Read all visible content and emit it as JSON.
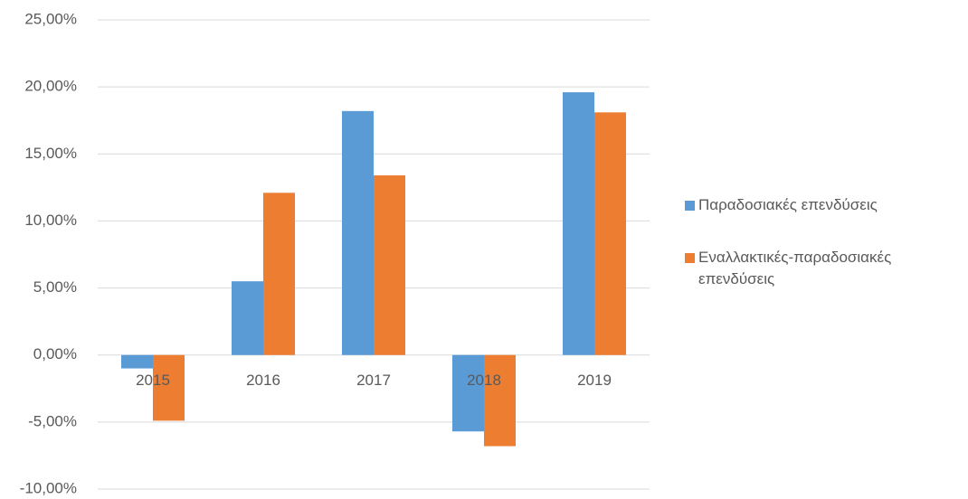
{
  "chart_data": {
    "type": "bar",
    "categories": [
      "2015",
      "2016",
      "2017",
      "2018",
      "2019"
    ],
    "series": [
      {
        "name": "Παραδοσιακές επενδύσεις",
        "color": "#5b9bd5",
        "values": [
          -1.0,
          5.5,
          18.2,
          -5.7,
          19.6
        ]
      },
      {
        "name": "Εναλλακτικές-παραδοσιακές επενδύσεις",
        "color": "#ed7d31",
        "values": [
          -4.9,
          12.1,
          13.4,
          -6.8,
          18.1
        ]
      }
    ],
    "ylim": [
      -10,
      25
    ],
    "yticks": [
      {
        "value": -10,
        "label": "-10,00%"
      },
      {
        "value": -5,
        "label": "-5,00%"
      },
      {
        "value": 0,
        "label": "0,00%"
      },
      {
        "value": 5,
        "label": "5,00%"
      },
      {
        "value": 10,
        "label": "10,00%"
      },
      {
        "value": 15,
        "label": "15,00%"
      },
      {
        "value": 20,
        "label": "20,00%"
      },
      {
        "value": 25,
        "label": "25,00%"
      }
    ],
    "grid": true,
    "legend": "right"
  }
}
